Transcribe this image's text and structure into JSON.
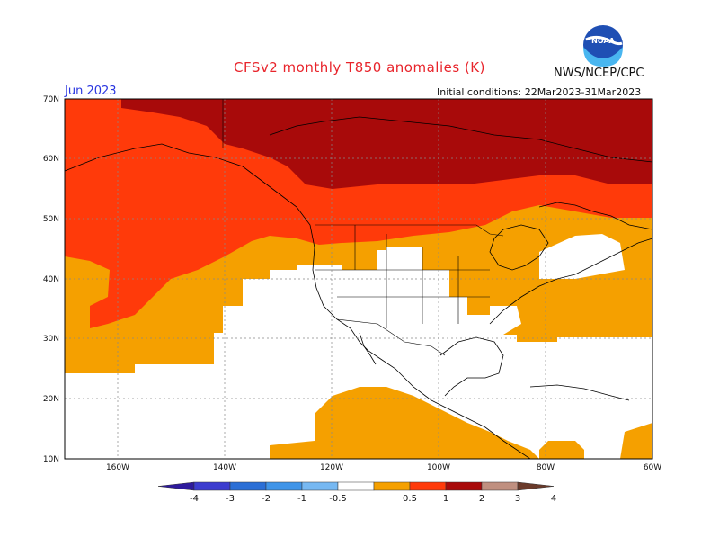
{
  "title": "CFSv2 monthly T850 anomalies (K)",
  "organization": "NWS/NCEP/CPC",
  "logo_text": "NOAA",
  "period": "Jun 2023",
  "initial_conditions": "Initial conditions: 22Mar2023-31Mar2023",
  "map": {
    "lon_range": [
      -170,
      -60
    ],
    "lat_range": [
      10,
      70
    ],
    "lat_labels": [
      "70N",
      "60N",
      "50N",
      "40N",
      "30N",
      "20N",
      "10N"
    ],
    "lon_labels": [
      "160W",
      "140W",
      "120W",
      "100W",
      "80W",
      "60W"
    ]
  },
  "colorbar": {
    "labels": [
      "-4",
      "-3",
      "-2",
      "-1",
      "-0.5",
      "0.5",
      "1",
      "2",
      "3",
      "4"
    ],
    "colors": [
      "#2e1a9c",
      "#3c3ccf",
      "#2b6fd6",
      "#3f94e8",
      "#76b8f2",
      "#ffffff",
      "#f5a000",
      "#ff3a0a",
      "#a80a0a",
      "#c09080",
      "#6a3a2a"
    ],
    "levels": {
      "light_orange": "#f5a000",
      "red_orange": "#ff3a0a",
      "dark_red": "#a80a0a"
    }
  }
}
